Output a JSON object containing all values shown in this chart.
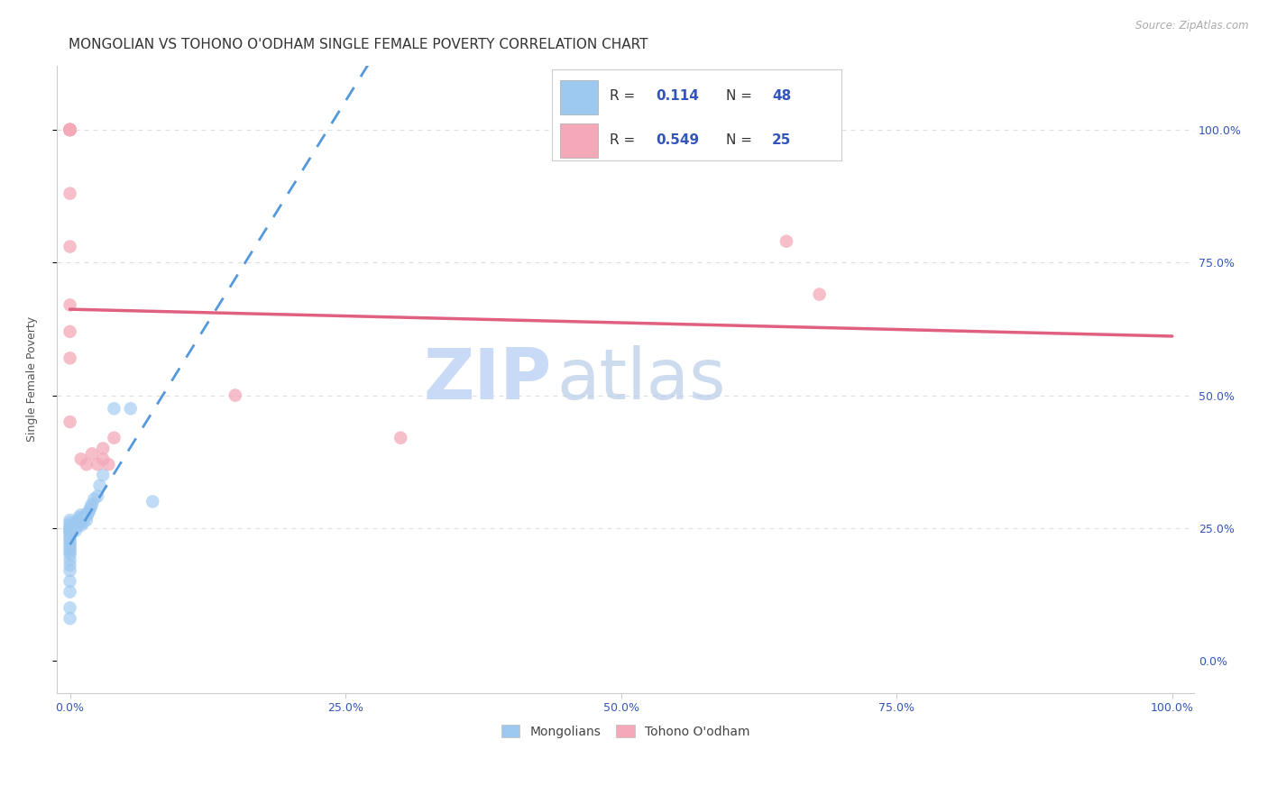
{
  "title": "MONGOLIAN VS TOHONO O'ODHAM SINGLE FEMALE POVERTY CORRELATION CHART",
  "source": "Source: ZipAtlas.com",
  "ylabel": "Single Female Poverty",
  "xtick_vals": [
    0.0,
    0.25,
    0.5,
    0.75,
    1.0
  ],
  "xtick_labels": [
    "0.0%",
    "25.0%",
    "50.0%",
    "75.0%",
    "100.0%"
  ],
  "ytick_vals": [
    0.0,
    0.25,
    0.5,
    0.75,
    1.0
  ],
  "ytick_labels": [
    "0.0%",
    "25.0%",
    "50.0%",
    "75.0%",
    "100.0%"
  ],
  "mongolian_color": "#9DC8F0",
  "tohono_color": "#F4A8B8",
  "mongolian_line_color": "#5599DD",
  "tohono_line_color": "#E06080",
  "mongolian_R": 0.114,
  "mongolian_N": 48,
  "tohono_R": 0.549,
  "tohono_N": 25,
  "legend_label_1": "Mongolians",
  "legend_label_2": "Tohono O'odham",
  "watermark_zip": "ZIP",
  "watermark_atlas": "atlas",
  "background_color": "#ffffff",
  "grid_color": "#e0e0e0",
  "title_fontsize": 11,
  "axis_label_fontsize": 9,
  "tick_fontsize": 9,
  "scatter_size": 110,
  "mongolian_x": [
    0.0,
    0.0,
    0.0,
    0.0,
    0.0,
    0.0,
    0.0,
    0.0,
    0.0,
    0.0,
    0.0,
    0.0,
    0.0,
    0.0,
    0.0,
    0.0,
    0.0,
    0.0,
    0.0,
    0.0,
    0.0,
    0.0,
    0.0,
    0.005,
    0.005,
    0.007,
    0.008,
    0.008,
    0.009,
    0.01,
    0.01,
    0.01,
    0.012,
    0.013,
    0.014,
    0.015,
    0.016,
    0.017,
    0.018,
    0.019,
    0.02,
    0.022,
    0.025,
    0.027,
    0.03,
    0.04,
    0.055,
    0.075
  ],
  "mongolian_y": [
    0.08,
    0.1,
    0.13,
    0.15,
    0.17,
    0.18,
    0.19,
    0.2,
    0.205,
    0.21,
    0.215,
    0.22,
    0.225,
    0.23,
    0.235,
    0.24,
    0.245,
    0.245,
    0.25,
    0.25,
    0.255,
    0.26,
    0.265,
    0.245,
    0.26,
    0.255,
    0.26,
    0.27,
    0.265,
    0.255,
    0.265,
    0.275,
    0.26,
    0.27,
    0.275,
    0.265,
    0.275,
    0.28,
    0.285,
    0.29,
    0.295,
    0.305,
    0.31,
    0.33,
    0.35,
    0.475,
    0.475,
    0.3
  ],
  "tohono_x": [
    0.0,
    0.0,
    0.0,
    0.0,
    0.0,
    0.0,
    0.01,
    0.015,
    0.02,
    0.025,
    0.03,
    0.03,
    0.035,
    0.04,
    0.15,
    0.3,
    0.65,
    0.68
  ],
  "tohono_y": [
    0.88,
    0.78,
    0.67,
    0.62,
    0.57,
    0.45,
    0.38,
    0.37,
    0.39,
    0.37,
    0.38,
    0.4,
    0.37,
    0.42,
    0.5,
    0.42,
    0.79,
    0.69
  ],
  "tohono_x2": [
    0.0,
    0.0,
    0.0,
    0.0,
    0.0,
    0.0,
    0.0
  ],
  "tohono_y2": [
    1.0,
    1.0,
    1.0,
    1.0,
    1.0,
    1.0,
    1.0
  ]
}
